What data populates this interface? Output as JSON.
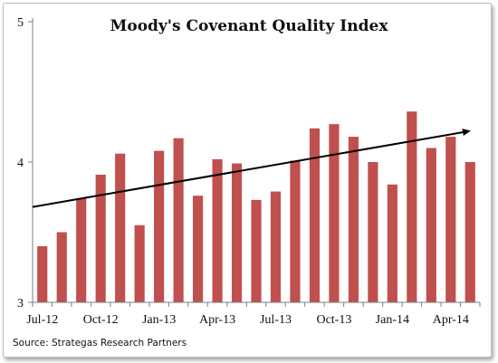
{
  "chart_data": {
    "type": "bar",
    "title": "Moody's Covenant Quality Index",
    "source": "Source: Strategas Research Partners",
    "categories": [
      "Jul-12",
      "Aug-12",
      "Sep-12",
      "Oct-12",
      "Nov-12",
      "Dec-12",
      "Jan-13",
      "Feb-13",
      "Mar-13",
      "Apr-13",
      "May-13",
      "Jun-13",
      "Jul-13",
      "Aug-13",
      "Sep-13",
      "Oct-13",
      "Nov-13",
      "Dec-13",
      "Jan-14",
      "Feb-14",
      "Mar-14",
      "Apr-14",
      "May-14"
    ],
    "x_tick_labels": [
      "Jul-12",
      "Oct-12",
      "Jan-13",
      "Apr-13",
      "Jul-13",
      "Oct-13",
      "Jan-14",
      "Apr-14"
    ],
    "values": [
      3.4,
      3.5,
      3.74,
      3.91,
      4.06,
      3.55,
      4.08,
      4.17,
      3.76,
      4.02,
      3.99,
      3.73,
      3.79,
      4.01,
      4.24,
      4.27,
      4.18,
      4.0,
      3.84,
      4.36,
      4.1,
      4.18,
      4.0
    ],
    "ylim": [
      3,
      5
    ],
    "y_ticks": [
      3,
      4,
      5
    ],
    "trend_line": {
      "start_value": 3.68,
      "end_value": 4.22,
      "arrow": true
    },
    "grid": false,
    "colors": {
      "bar": "#c0504d",
      "trend": "#000000"
    }
  }
}
